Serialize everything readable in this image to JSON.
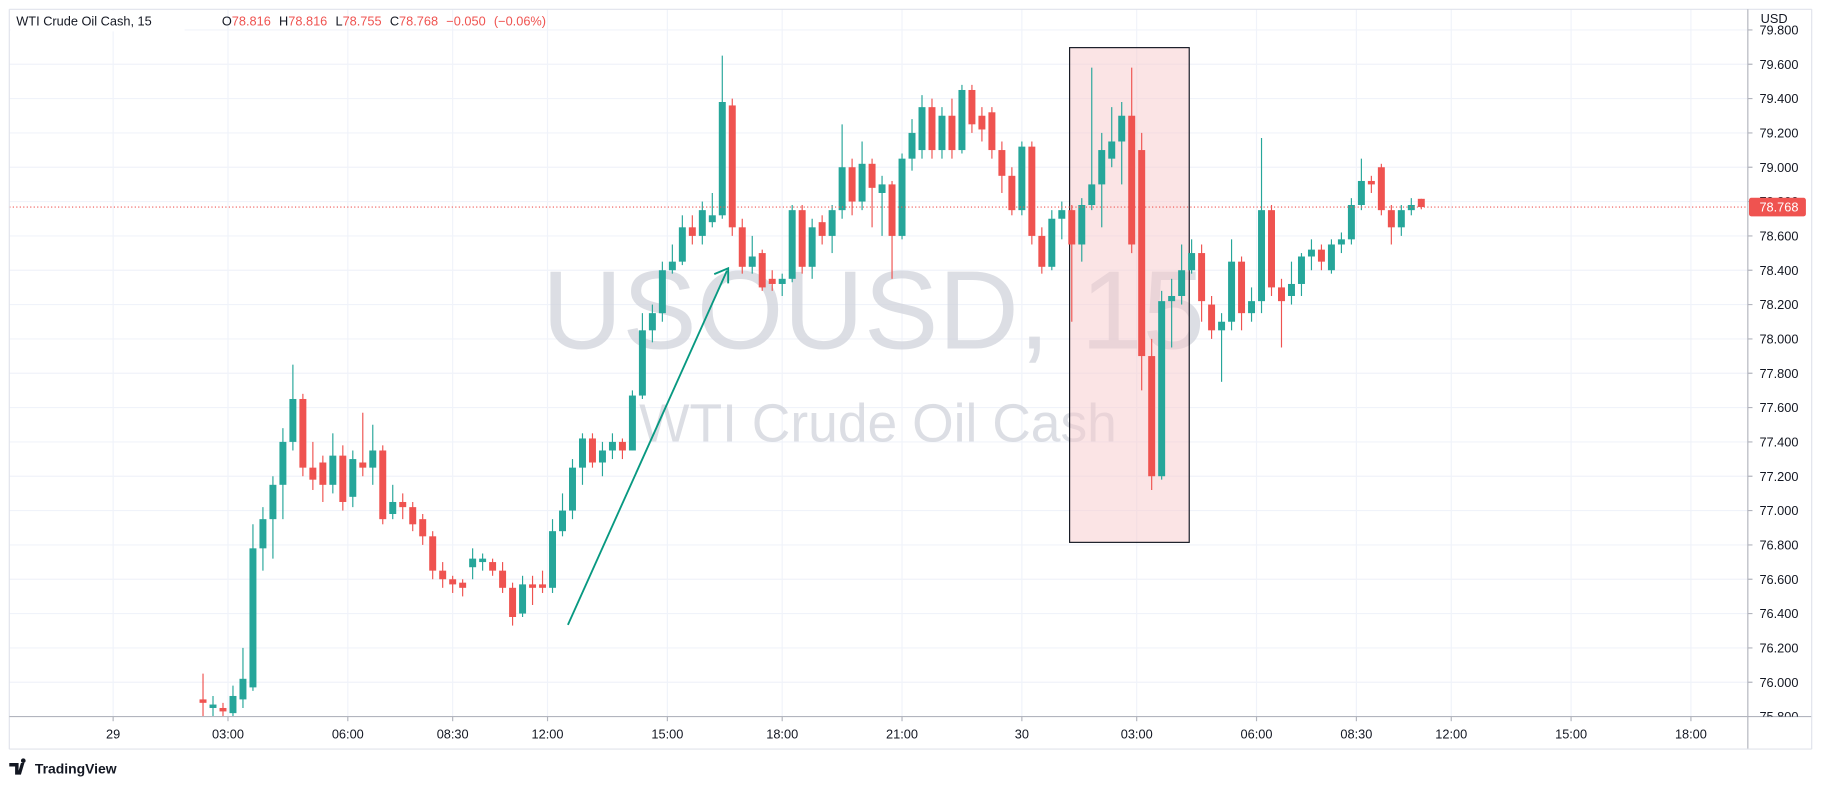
{
  "header": {
    "symbol": "WTI Crude Oil Cash, 15",
    "legend": [
      {
        "key": "O",
        "value": "78.816"
      },
      {
        "key": "H",
        "value": "78.816"
      },
      {
        "key": "L",
        "value": "78.755"
      },
      {
        "key": "C",
        "value": "78.768"
      }
    ],
    "change": "−0.050",
    "change_pct": "(−0.06%)",
    "currency": "USD"
  },
  "watermark": {
    "ticker": "USOUSD, 15",
    "name": "WTI Crude Oil Cash"
  },
  "branding": "TradingView",
  "chart_data": {
    "type": "candlestick",
    "up_color": "#26a69a",
    "down_color": "#ef5350",
    "grid": true,
    "last_price": 78.768,
    "last_price_color": "#ef5350",
    "xlim": [
      -19.4,
      154.7
    ],
    "ylim": [
      75.8,
      79.92
    ],
    "xticks": [
      {
        "value": -9,
        "label": "29"
      },
      {
        "value": 2.5,
        "label": "03:00"
      },
      {
        "value": 14.5,
        "label": "06:00"
      },
      {
        "value": 25,
        "label": "08:30"
      },
      {
        "value": 34.5,
        "label": "12:00"
      },
      {
        "value": 46.5,
        "label": "15:00"
      },
      {
        "value": 58,
        "label": "18:00"
      },
      {
        "value": 70,
        "label": "21:00"
      },
      {
        "value": 82,
        "label": "30"
      },
      {
        "value": 93.5,
        "label": "03:00"
      },
      {
        "value": 105.5,
        "label": "06:00"
      },
      {
        "value": 115.5,
        "label": "08:30"
      },
      {
        "value": 125,
        "label": "12:00"
      },
      {
        "value": 137,
        "label": "15:00"
      },
      {
        "value": 149,
        "label": "18:00"
      }
    ],
    "yticks": [
      {
        "value": 75.8,
        "label": "75.800"
      },
      {
        "value": 76.0,
        "label": "76.000"
      },
      {
        "value": 76.2,
        "label": "76.200"
      },
      {
        "value": 76.4,
        "label": "76.400"
      },
      {
        "value": 76.6,
        "label": "76.600"
      },
      {
        "value": 76.8,
        "label": "76.800"
      },
      {
        "value": 77.0,
        "label": "77.000"
      },
      {
        "value": 77.2,
        "label": "77.200"
      },
      {
        "value": 77.4,
        "label": "77.400"
      },
      {
        "value": 77.6,
        "label": "77.600"
      },
      {
        "value": 77.8,
        "label": "77.800"
      },
      {
        "value": 78.0,
        "label": "78.000"
      },
      {
        "value": 78.2,
        "label": "78.200"
      },
      {
        "value": 78.4,
        "label": "78.400"
      },
      {
        "value": 78.6,
        "label": "78.600"
      },
      {
        "value": 78.8,
        "label": "78.800"
      },
      {
        "value": 79.0,
        "label": "79.000"
      },
      {
        "value": 79.2,
        "label": "79.200"
      },
      {
        "value": 79.4,
        "label": "79.400"
      },
      {
        "value": 79.6,
        "label": "79.600"
      },
      {
        "value": 79.8,
        "label": "79.800"
      }
    ],
    "open": [
      75.9,
      75.85,
      75.85,
      75.82,
      75.9,
      75.97,
      76.78,
      76.95,
      77.15,
      77.4,
      77.65,
      77.25,
      77.28,
      77.15,
      77.32,
      77.08,
      77.28,
      77.25,
      77.35,
      76.98,
      77.05,
      77.02,
      76.95,
      76.85,
      76.65,
      76.6,
      76.58,
      76.67,
      76.7,
      76.7,
      76.65,
      76.55,
      76.4,
      76.57,
      76.57,
      76.55,
      76.88,
      77.0,
      77.25,
      77.42,
      77.28,
      77.35,
      77.4,
      77.35,
      77.67,
      78.05,
      78.15,
      78.4,
      78.45,
      78.65,
      78.6,
      78.68,
      78.72,
      79.36,
      78.65,
      78.42,
      78.5,
      78.35,
      78.32,
      78.35,
      78.75,
      78.42,
      78.68,
      78.6,
      78.75,
      79.0,
      78.8,
      79.02,
      78.85,
      78.9,
      78.6,
      79.05,
      79.1,
      79.35,
      79.1,
      79.3,
      79.1,
      79.45,
      79.3,
      79.32,
      79.1,
      78.95,
      78.75,
      79.12,
      78.6,
      78.42,
      78.7,
      78.75,
      78.55,
      78.78,
      78.9,
      79.05,
      79.15,
      79.3,
      79.1,
      77.9,
      77.2,
      78.22,
      78.25,
      78.4,
      78.5,
      78.2,
      78.05,
      78.1,
      78.45,
      78.15,
      78.22,
      78.75,
      78.3,
      78.25,
      78.32,
      78.48,
      78.52,
      78.4,
      78.55,
      78.58,
      78.78,
      78.92,
      79.0,
      78.75,
      78.65,
      78.75,
      78.816
    ],
    "high": [
      76.05,
      75.92,
      75.88,
      75.98,
      76.2,
      76.92,
      77.02,
      77.2,
      77.48,
      77.85,
      77.68,
      77.4,
      77.32,
      77.45,
      77.38,
      77.35,
      77.57,
      77.5,
      77.38,
      77.15,
      77.1,
      77.05,
      76.98,
      76.88,
      76.7,
      76.62,
      76.6,
      76.78,
      76.75,
      76.72,
      76.7,
      76.58,
      76.62,
      76.62,
      76.65,
      76.95,
      77.1,
      77.3,
      77.45,
      77.45,
      77.4,
      77.45,
      77.42,
      77.7,
      78.15,
      78.2,
      78.45,
      78.55,
      78.72,
      78.72,
      78.8,
      78.85,
      79.65,
      79.4,
      78.7,
      78.6,
      78.52,
      78.4,
      78.38,
      78.78,
      78.78,
      78.7,
      78.72,
      78.78,
      79.25,
      79.05,
      79.15,
      79.05,
      78.95,
      78.92,
      79.08,
      79.28,
      79.42,
      79.4,
      79.35,
      79.4,
      79.48,
      79.48,
      79.35,
      79.35,
      79.15,
      79.0,
      79.15,
      79.15,
      78.65,
      78.75,
      78.8,
      78.78,
      78.82,
      79.58,
      79.2,
      79.35,
      79.38,
      79.58,
      79.2,
      78.0,
      78.28,
      78.35,
      78.55,
      78.58,
      78.55,
      78.25,
      78.15,
      78.58,
      78.48,
      78.3,
      79.17,
      78.78,
      78.35,
      78.45,
      78.5,
      78.58,
      78.55,
      78.58,
      78.62,
      78.82,
      79.05,
      78.95,
      79.02,
      78.78,
      78.78,
      78.82,
      78.816
    ],
    "low": [
      75.8,
      75.8,
      75.78,
      75.78,
      75.85,
      75.95,
      76.65,
      76.72,
      76.95,
      77.35,
      77.2,
      77.12,
      77.05,
      77.1,
      77.0,
      77.02,
      77.2,
      77.15,
      76.92,
      76.95,
      76.95,
      76.88,
      76.8,
      76.6,
      76.55,
      76.52,
      76.5,
      76.6,
      76.65,
      76.62,
      76.52,
      76.33,
      76.38,
      76.45,
      76.52,
      76.52,
      76.85,
      76.95,
      77.15,
      77.25,
      77.2,
      77.3,
      77.3,
      77.35,
      77.65,
      77.98,
      78.1,
      78.38,
      78.43,
      78.55,
      78.55,
      78.65,
      78.7,
      78.6,
      78.38,
      78.38,
      78.28,
      78.28,
      78.25,
      78.33,
      78.38,
      78.35,
      78.55,
      78.5,
      78.7,
      78.72,
      78.75,
      78.65,
      78.6,
      78.35,
      78.58,
      78.98,
      79.05,
      79.05,
      79.05,
      79.05,
      79.08,
      79.2,
      79.15,
      79.05,
      78.85,
      78.72,
      78.72,
      78.55,
      78.38,
      78.4,
      78.58,
      78.1,
      78.45,
      78.75,
      78.65,
      79.0,
      78.9,
      78.5,
      77.7,
      77.12,
      77.18,
      77.95,
      78.2,
      78.38,
      78.1,
      78.0,
      77.75,
      78.05,
      78.05,
      78.1,
      78.15,
      78.25,
      77.95,
      78.2,
      78.25,
      78.4,
      78.4,
      78.38,
      78.5,
      78.55,
      78.75,
      78.85,
      78.72,
      78.55,
      78.6,
      78.72,
      78.755
    ],
    "close": [
      75.88,
      75.87,
      75.83,
      75.92,
      76.02,
      76.78,
      76.95,
      77.15,
      77.4,
      77.65,
      77.25,
      77.18,
      77.15,
      77.32,
      77.05,
      77.3,
      77.25,
      77.35,
      76.95,
      77.05,
      77.02,
      76.92,
      76.85,
      76.65,
      76.6,
      76.57,
      76.55,
      76.72,
      76.72,
      76.65,
      76.55,
      76.38,
      76.57,
      76.55,
      76.55,
      76.88,
      77.0,
      77.25,
      77.42,
      77.28,
      77.35,
      77.4,
      77.35,
      77.67,
      78.05,
      78.15,
      78.4,
      78.45,
      78.65,
      78.6,
      78.75,
      78.72,
      79.38,
      78.65,
      78.42,
      78.48,
      78.3,
      78.32,
      78.35,
      78.75,
      78.42,
      78.65,
      78.6,
      78.75,
      79.0,
      78.8,
      79.02,
      78.88,
      78.9,
      78.6,
      79.05,
      79.2,
      79.35,
      79.1,
      79.3,
      79.1,
      79.45,
      79.25,
      79.22,
      79.1,
      78.95,
      78.75,
      79.12,
      78.6,
      78.42,
      78.7,
      78.75,
      78.55,
      78.78,
      78.9,
      79.1,
      79.15,
      79.3,
      78.55,
      77.9,
      77.2,
      78.22,
      78.25,
      78.4,
      78.5,
      78.22,
      78.05,
      78.1,
      78.45,
      78.15,
      78.22,
      78.75,
      78.3,
      78.22,
      78.32,
      78.48,
      78.52,
      78.45,
      78.55,
      78.58,
      78.78,
      78.92,
      78.9,
      78.75,
      78.65,
      78.75,
      78.78,
      78.768
    ]
  }
}
